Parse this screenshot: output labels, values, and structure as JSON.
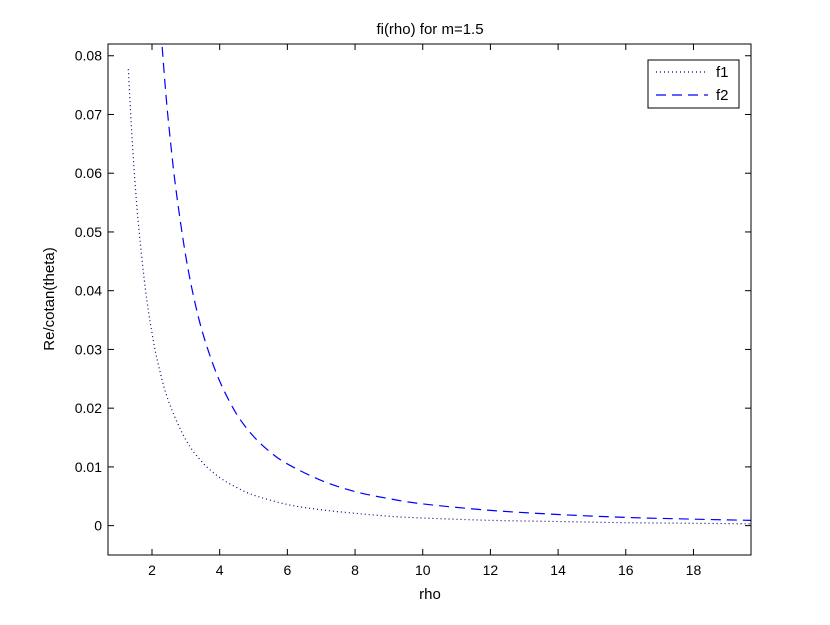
{
  "chart_data": {
    "type": "line",
    "title": "fi(rho) for m=1.5",
    "xlabel": "rho",
    "ylabel": "Re/cotan(theta)",
    "xlim": [
      0.7,
      19.7
    ],
    "ylim": [
      -0.005,
      0.082
    ],
    "xticks": [
      2,
      4,
      6,
      8,
      10,
      12,
      14,
      16,
      18
    ],
    "xtick_labels": [
      "2",
      "4",
      "6",
      "8",
      "10",
      "12",
      "14",
      "16",
      "18"
    ],
    "yticks": [
      0,
      0.01,
      0.02,
      0.03,
      0.04,
      0.05,
      0.06,
      0.07,
      0.08
    ],
    "ytick_labels": [
      "0",
      "0.01",
      "0.02",
      "0.03",
      "0.04",
      "0.05",
      "0.06",
      "0.07",
      "0.08"
    ],
    "grid": false,
    "legend_position": "top-right",
    "series": [
      {
        "name": "f1",
        "style": "dotted",
        "color": "#000080",
        "x": [
          1.3,
          1.4,
          1.5,
          1.6,
          1.8,
          2.0,
          2.2,
          2.5,
          3.0,
          3.5,
          4.0,
          4.5,
          5.0,
          6.0,
          7.0,
          8.0,
          9.0,
          10.0,
          12.0,
          14.0,
          16.0,
          18.0,
          19.7
        ],
        "y": [
          0.0777,
          0.067,
          0.0583,
          0.0513,
          0.0405,
          0.0328,
          0.0271,
          0.021,
          0.0146,
          0.0107,
          0.0082,
          0.0065,
          0.0052,
          0.0036,
          0.0027,
          0.0021,
          0.0016,
          0.0013,
          0.0009,
          0.0007,
          0.0005,
          0.0004,
          0.0003
        ]
      },
      {
        "name": "f2",
        "style": "dashed",
        "color": "#0000ff",
        "x": [
          2.3,
          2.4,
          2.5,
          2.7,
          3.0,
          3.3,
          3.6,
          4.0,
          4.5,
          5.0,
          5.5,
          6.0,
          7.0,
          8.0,
          9.0,
          10.0,
          12.0,
          14.0,
          16.0,
          18.0,
          19.7
        ],
        "y": [
          0.0815,
          0.0742,
          0.068,
          0.0576,
          0.0458,
          0.0372,
          0.0309,
          0.0246,
          0.019,
          0.0152,
          0.0125,
          0.0105,
          0.0077,
          0.0058,
          0.0046,
          0.0037,
          0.0026,
          0.0019,
          0.0014,
          0.0011,
          0.0009
        ]
      }
    ]
  }
}
